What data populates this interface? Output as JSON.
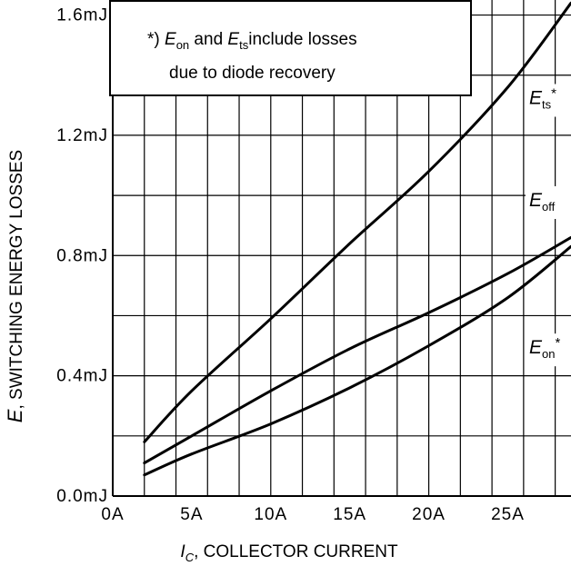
{
  "chart_data": {
    "type": "line",
    "xlabel": {
      "var": "I",
      "sub": "C",
      "text": ", COLLECTOR CURRENT"
    },
    "ylabel": {
      "var": "E",
      "text": ", SWITCHING ENERGY LOSSES"
    },
    "xlim": [
      0,
      29
    ],
    "ylim": [
      0,
      1.65
    ],
    "xticks": [
      {
        "value": 0,
        "label": "0A"
      },
      {
        "value": 5,
        "label": "5A"
      },
      {
        "value": 10,
        "label": "10A"
      },
      {
        "value": 15,
        "label": "15A"
      },
      {
        "value": 20,
        "label": "20A"
      },
      {
        "value": 25,
        "label": "25A"
      }
    ],
    "yticks": [
      {
        "value": 0.0,
        "label": "0.0mJ"
      },
      {
        "value": 0.4,
        "label": "0.4mJ"
      },
      {
        "value": 0.8,
        "label": "0.8mJ"
      },
      {
        "value": 1.2,
        "label": "1.2mJ"
      },
      {
        "value": 1.6,
        "label": "1.6mJ"
      }
    ],
    "grid": true,
    "note": {
      "prefix": "*) ",
      "v1": "E",
      "s1": "on",
      "mid": " and ",
      "v2": "E",
      "s2": "ts",
      "suffix": "include losses",
      "line2": "due to diode recovery"
    },
    "series": [
      {
        "name": "Ets*",
        "label_var": "E",
        "label_sub": "ts",
        "label_sup": "*",
        "x": [
          2,
          5,
          10,
          15,
          20,
          25,
          29
        ],
        "y": [
          0.18,
          0.35,
          0.59,
          0.84,
          1.08,
          1.36,
          1.64
        ]
      },
      {
        "name": "Eoff",
        "label_var": "E",
        "label_sub": "off",
        "label_sup": "",
        "x": [
          2,
          5,
          10,
          15,
          20,
          25,
          29
        ],
        "y": [
          0.11,
          0.2,
          0.35,
          0.49,
          0.61,
          0.74,
          0.86
        ]
      },
      {
        "name": "Eon*",
        "label_var": "E",
        "label_sub": "on",
        "label_sup": "*",
        "x": [
          2,
          5,
          10,
          15,
          20,
          25,
          29
        ],
        "y": [
          0.07,
          0.14,
          0.24,
          0.36,
          0.5,
          0.66,
          0.83
        ]
      }
    ]
  }
}
